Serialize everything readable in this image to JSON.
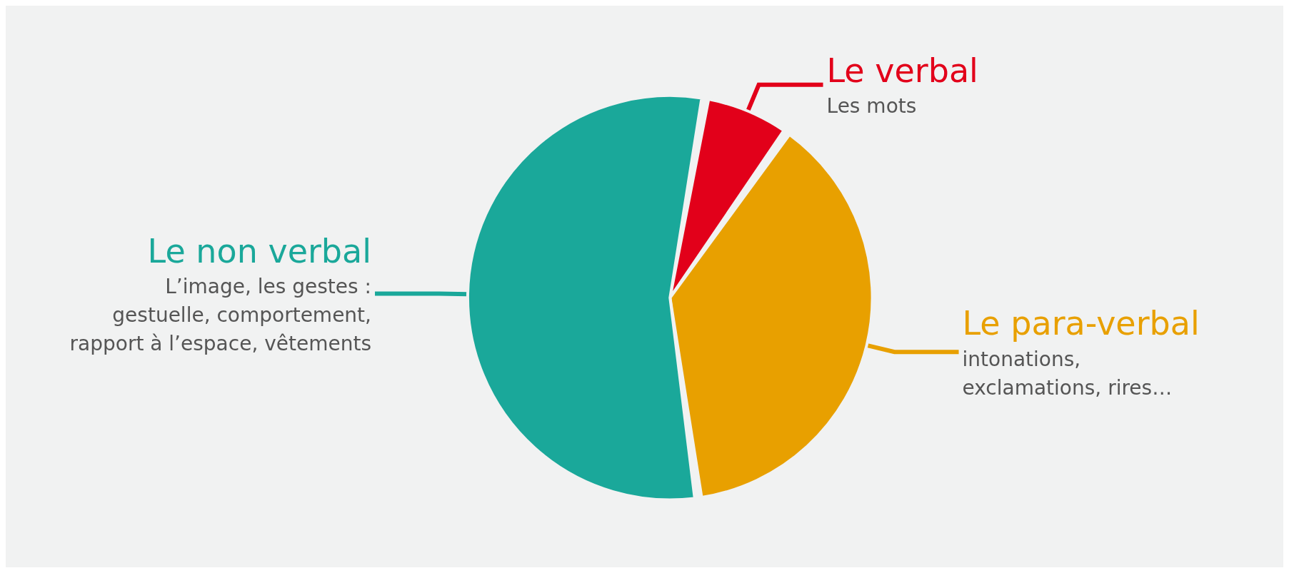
{
  "chart_data": {
    "type": "pie",
    "categories": [
      "Le verbal",
      "Le para-verbal",
      "Le non verbal"
    ],
    "values": [
      7,
      38,
      55
    ],
    "colors": [
      "#e2001a",
      "#e8a000",
      "#1aa89a"
    ],
    "annotations": [
      "Les mots",
      "intonations,\nexclamations, rires…",
      "L’image, les gestes :\ngestuelle, comportement,\nrapport à l’espace, vêtements"
    ],
    "legend": false
  }
}
